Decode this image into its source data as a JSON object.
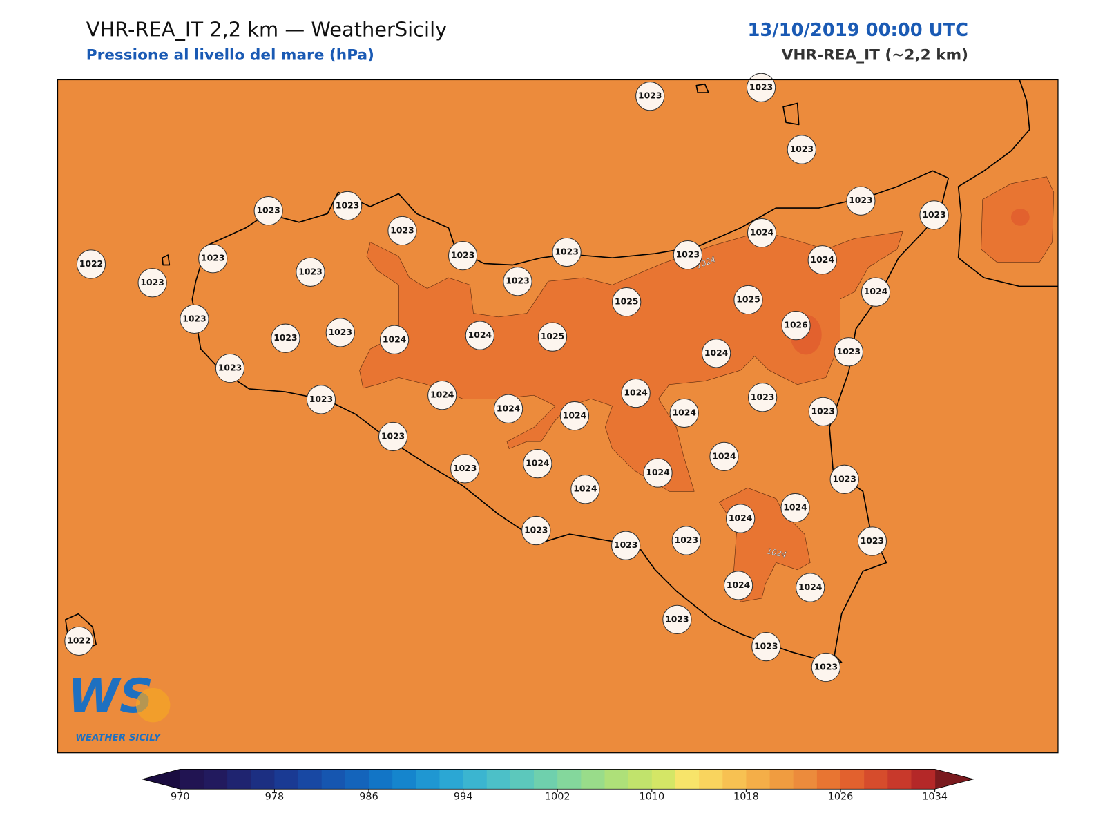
{
  "header": {
    "title": "VHR-REA_IT 2,2 km — WeatherSicily",
    "subtitle": "Pressione al livello del mare (hPa)",
    "date": "13/10/2019 00:00 UTC",
    "model": "VHR-REA_IT (~2,2 km)"
  },
  "stations": [
    1023,
    1023,
    1023,
    1023,
    1023,
    1023,
    1023,
    1023,
    1023,
    1024,
    1023,
    1023,
    1022,
    1023,
    1023,
    1023,
    1023,
    1024,
    1024,
    1025,
    1025,
    1026,
    1023,
    1023,
    1023,
    1024,
    1024,
    1025,
    1024,
    1023,
    1023,
    1023,
    1024,
    1024,
    1024,
    1024,
    1024,
    1023,
    1023,
    1023,
    1023,
    1024,
    1024,
    1024,
    1024,
    1023,
    1024,
    1024,
    1023,
    1023,
    1023,
    1023,
    1024,
    1024,
    1023,
    1023,
    1023,
    1022
  ],
  "contour_labels": [
    1024,
    1024
  ],
  "logo": {
    "mark": "WS",
    "text": "WEATHER SICILY"
  },
  "colorbar": {
    "range": [
      970,
      1034
    ],
    "ticks": [
      970,
      978,
      986,
      994,
      1002,
      1010,
      1018,
      1026,
      1034
    ],
    "colors": [
      "#211452",
      "#221a5e",
      "#1f2470",
      "#1c2f82",
      "#1a3a93",
      "#1848a3",
      "#1656b0",
      "#1464bb",
      "#1275c6",
      "#1585cd",
      "#1f97d2",
      "#2ba7d4",
      "#3bb5d0",
      "#4cc0c8",
      "#5cc8bc",
      "#6fd0ad",
      "#84d79c",
      "#99dc8a",
      "#aee079",
      "#c1e36c",
      "#d4e666",
      "#f7e46a",
      "#f9d45e",
      "#f7c152",
      "#f4ae48",
      "#f09c40",
      "#ec8b3c",
      "#e87532",
      "#e2612e",
      "#d64c2c",
      "#c8392b",
      "#b42828"
    ],
    "under_color": "#1a0c40",
    "over_color": "#7a1a1e"
  }
}
